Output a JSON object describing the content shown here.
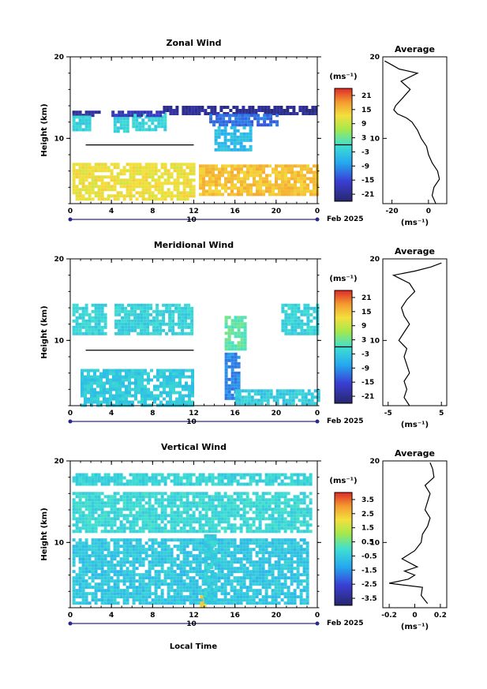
{
  "figure": {
    "x_axis_label": "Local Time",
    "date_label": "Feb 2025",
    "day_label": "10"
  },
  "chart_data": [
    {
      "type": "heatmap",
      "title": "Zonal Wind",
      "ylabel": "Height (km)",
      "xlabel": "",
      "unit": "(ms⁻¹)",
      "x_ticks": [
        "0",
        "4",
        "8",
        "12",
        "16",
        "20",
        "0"
      ],
      "y_ticks": [
        "10",
        "20"
      ],
      "xlim": [
        0,
        24
      ],
      "ylim": [
        2,
        20
      ],
      "colorbar_ticks": [
        "21",
        "15",
        "9",
        "3",
        "-3",
        "-9",
        "-15",
        "-21"
      ],
      "colorbar_range": [
        -24,
        24
      ],
      "regions": [
        {
          "x": [
            0.2,
            2.8
          ],
          "y": [
            12.8,
            13.4
          ],
          "value": -21
        },
        {
          "x": [
            0.2,
            2.0
          ],
          "y": [
            11.0,
            12.8
          ],
          "value": -2
        },
        {
          "x": [
            4.2,
            5.5
          ],
          "y": [
            11.0,
            13.0
          ],
          "value": -2
        },
        {
          "x": [
            6.0,
            9.3
          ],
          "y": [
            11.0,
            13.2
          ],
          "value": -2
        },
        {
          "x": [
            4.0,
            9.0
          ],
          "y": [
            13.0,
            13.4
          ],
          "value": -18
        },
        {
          "x": [
            9.0,
            24.0
          ],
          "y": [
            13.1,
            14.0
          ],
          "value": -21
        },
        {
          "x": [
            13.5,
            20.0
          ],
          "y": [
            11.5,
            13.0
          ],
          "value": -12
        },
        {
          "x": [
            14.0,
            17.5
          ],
          "y": [
            8.5,
            11.5
          ],
          "value": -5
        },
        {
          "x": [
            0.2,
            12.0
          ],
          "y": [
            2.5,
            7.0
          ],
          "value": 12
        },
        {
          "x": [
            12.5,
            24.0
          ],
          "y": [
            3.0,
            6.8
          ],
          "value": 15
        }
      ],
      "contour_zero_height": 9.2,
      "average_profile": {
        "title": "Average",
        "xlim": [
          -25,
          10
        ],
        "x_ticks": [
          "-20",
          "0"
        ],
        "y_ticks": [
          "10",
          "20"
        ],
        "unit": "(ms⁻¹)",
        "height": [
          2.0,
          3.0,
          4.0,
          5.0,
          6.0,
          7.0,
          8.0,
          9.0,
          10.0,
          11.0,
          12.0,
          12.5,
          13.0,
          13.5,
          14.0,
          15.0,
          16.0,
          17.0,
          18.0,
          18.5,
          19.0,
          19.5
        ],
        "wind": [
          4.0,
          2.0,
          3.0,
          6.0,
          5.0,
          2.0,
          0.0,
          -1.0,
          -4.0,
          -6.0,
          -9.0,
          -12.0,
          -17.0,
          -19.0,
          -18.0,
          -14.0,
          -10.0,
          -15.0,
          -6.0,
          -16.0,
          -20.0,
          -24.0
        ]
      }
    },
    {
      "type": "heatmap",
      "title": "Meridional Wind",
      "ylabel": "Height (km)",
      "xlabel": "",
      "unit": "(ms⁻¹)",
      "x_ticks": [
        "0",
        "4",
        "8",
        "12",
        "16",
        "20",
        "0"
      ],
      "y_ticks": [
        "10",
        "20"
      ],
      "xlim": [
        0,
        24
      ],
      "ylim": [
        2,
        20
      ],
      "colorbar_ticks": [
        "21",
        "15",
        "9",
        "3",
        "-3",
        "-9",
        "-15",
        "-21"
      ],
      "colorbar_range": [
        -24,
        24
      ],
      "regions": [
        {
          "x": [
            0.2,
            3.5
          ],
          "y": [
            11.0,
            14.5
          ],
          "value": -2
        },
        {
          "x": [
            4.3,
            11.8
          ],
          "y": [
            10.8,
            14.5
          ],
          "value": -2
        },
        {
          "x": [
            15.0,
            16.5
          ],
          "y": [
            3.0,
            8.5
          ],
          "value": -10
        },
        {
          "x": [
            15.0,
            17.0
          ],
          "y": [
            9.0,
            13.0
          ],
          "value": 2
        },
        {
          "x": [
            20.5,
            24.0
          ],
          "y": [
            11.0,
            14.5
          ],
          "value": -2
        },
        {
          "x": [
            1.0,
            12.0
          ],
          "y": [
            2.2,
            6.5
          ],
          "value": -3
        },
        {
          "x": [
            16.0,
            24.0
          ],
          "y": [
            2.3,
            4.0
          ],
          "value": -3
        }
      ],
      "contour_zero_height": 8.8,
      "average_profile": {
        "title": "Average",
        "xlim": [
          -6,
          6
        ],
        "x_ticks": [
          "-5",
          "5"
        ],
        "y_ticks": [
          "10",
          "20"
        ],
        "unit": "(ms⁻¹)",
        "height": [
          2.0,
          3.0,
          4.0,
          5.0,
          6.0,
          7.0,
          8.0,
          9.0,
          10.0,
          11.0,
          12.0,
          13.0,
          14.0,
          15.0,
          16.0,
          17.0,
          18.0,
          18.5,
          19.0,
          19.5
        ],
        "wind": [
          -1.0,
          -2.0,
          -1.5,
          -2.0,
          -1.0,
          -1.5,
          -2.0,
          -1.5,
          -3.0,
          -2.0,
          -1.0,
          -2.0,
          -2.5,
          -1.5,
          0.0,
          -1.0,
          -4.0,
          0.0,
          3.0,
          5.0
        ]
      }
    },
    {
      "type": "heatmap",
      "title": "Vertical Wind",
      "ylabel": "Height (km)",
      "xlabel": "Local Time",
      "unit": "(ms⁻¹)",
      "x_ticks": [
        "0",
        "4",
        "8",
        "12",
        "16",
        "20",
        "0"
      ],
      "y_ticks": [
        "10",
        "20"
      ],
      "xlim": [
        0,
        24
      ],
      "ylim": [
        2,
        20
      ],
      "colorbar_ticks": [
        "3.5",
        "2.5",
        "1.5",
        "0.5",
        "-0.5",
        "-1.5",
        "-2.5",
        "-3.5"
      ],
      "colorbar_range": [
        -4,
        4
      ],
      "regions": [
        {
          "x": [
            0.2,
            23.5
          ],
          "y": [
            17.2,
            18.5
          ],
          "value": -0.3
        },
        {
          "x": [
            0.2,
            23.5
          ],
          "y": [
            11.2,
            16.2
          ],
          "value": -0.2
        },
        {
          "x": [
            0.2,
            23.0
          ],
          "y": [
            2.5,
            10.5
          ],
          "value": -0.6
        },
        {
          "x": [
            12.6,
            13.2
          ],
          "y": [
            2.3,
            3.5
          ],
          "value": 2.5
        },
        {
          "x": [
            13.0,
            14.0
          ],
          "y": [
            2.5,
            11.0
          ],
          "value": -0.4
        }
      ],
      "average_profile": {
        "title": "Average",
        "xlim": [
          -0.25,
          0.25
        ],
        "x_ticks": [
          "-0.2",
          "0",
          "0.2"
        ],
        "y_ticks": [
          "10",
          "20"
        ],
        "unit": "(ms⁻¹)",
        "height": [
          2.5,
          3.5,
          4.5,
          5.0,
          5.5,
          6.0,
          6.5,
          7.0,
          8.0,
          9.0,
          10.0,
          11.0,
          12.0,
          13.0,
          14.0,
          15.0,
          16.0,
          17.0,
          18.0,
          19.0,
          19.8
        ],
        "wind": [
          0.1,
          0.05,
          0.06,
          -0.2,
          -0.05,
          0.0,
          -0.08,
          0.02,
          -0.1,
          0.0,
          0.05,
          0.06,
          0.1,
          0.12,
          0.08,
          0.1,
          0.12,
          0.08,
          0.15,
          0.14,
          0.12
        ]
      }
    }
  ]
}
